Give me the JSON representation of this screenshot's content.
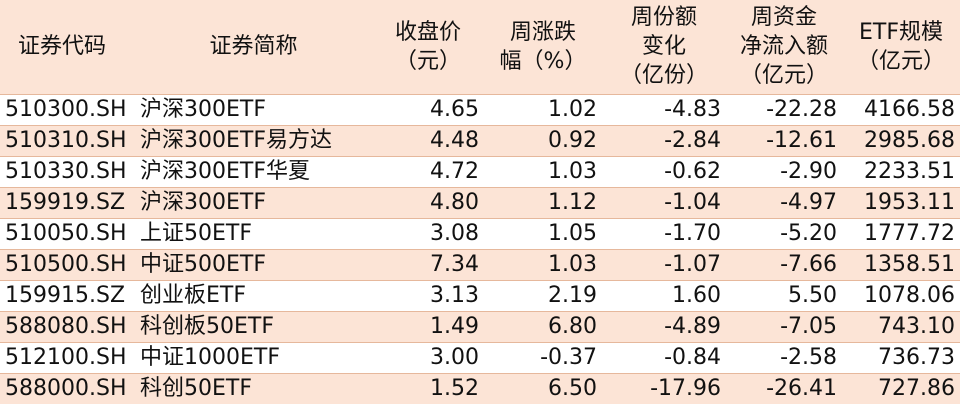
{
  "table": {
    "headers": [
      [
        "证券代码"
      ],
      [
        "证券简称"
      ],
      [
        "收盘价",
        "（元）"
      ],
      [
        "周涨跌",
        "幅（%）"
      ],
      [
        "周份额",
        "变化",
        "（亿份）"
      ],
      [
        "周资金",
        "净流入额",
        "（亿元）"
      ],
      [
        "ETF规模",
        "（亿元）"
      ]
    ],
    "rows": [
      [
        "510300.SH",
        "沪深300ETF",
        "4.65",
        "1.02",
        "-4.83",
        "-22.28",
        "4166.58"
      ],
      [
        "510310.SH",
        "沪深300ETF易方达",
        "4.48",
        "0.92",
        "-2.84",
        "-12.61",
        "2985.68"
      ],
      [
        "510330.SH",
        "沪深300ETF华夏",
        "4.72",
        "1.03",
        "-0.62",
        "-2.90",
        "2233.51"
      ],
      [
        "159919.SZ",
        "沪深300ETF",
        "4.80",
        "1.12",
        "-1.04",
        "-4.97",
        "1953.11"
      ],
      [
        "510050.SH",
        "上证50ETF",
        "3.08",
        "1.05",
        "-1.70",
        "-5.20",
        "1777.72"
      ],
      [
        "510500.SH",
        "中证500ETF",
        "7.34",
        "1.03",
        "-1.07",
        "-7.66",
        "1358.51"
      ],
      [
        "159915.SZ",
        "创业板ETF",
        "3.13",
        "2.19",
        "1.60",
        "5.50",
        "1078.06"
      ],
      [
        "588080.SH",
        "科创板50ETF",
        "1.49",
        "6.80",
        "-4.89",
        "-7.05",
        "743.10"
      ],
      [
        "512100.SH",
        "中证1000ETF",
        "3.00",
        "-0.37",
        "-0.84",
        "-2.58",
        "736.73"
      ],
      [
        "588000.SH",
        "科创50ETF",
        "1.52",
        "6.50",
        "-17.96",
        "-26.41",
        "727.86"
      ]
    ]
  }
}
